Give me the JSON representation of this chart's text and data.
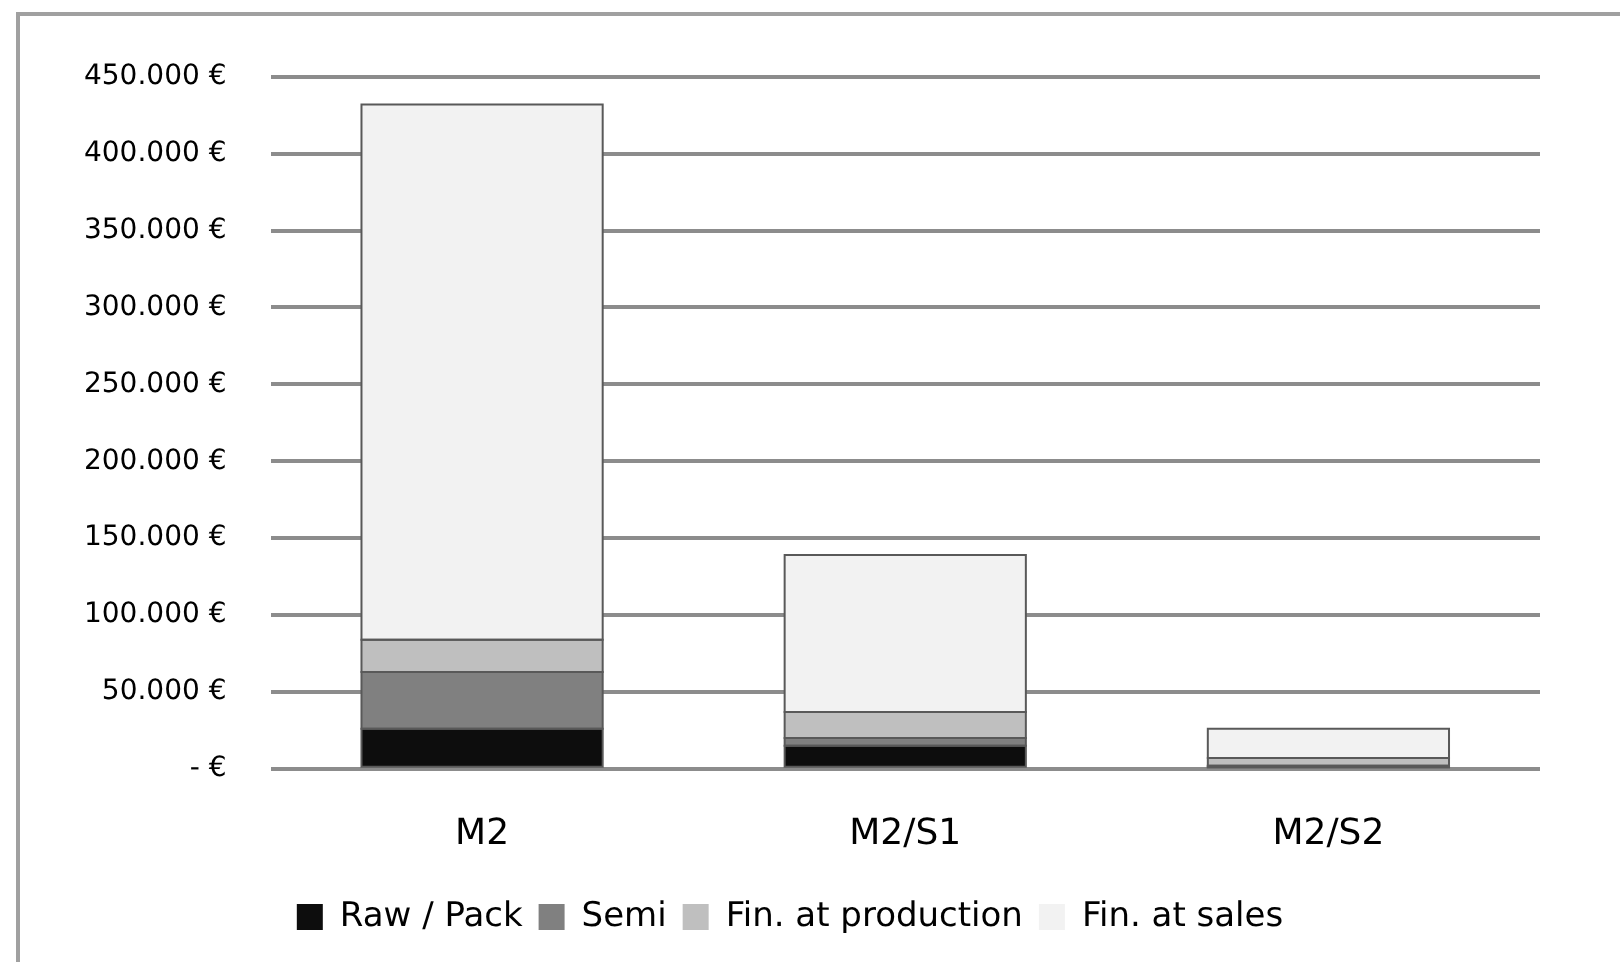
{
  "chart_data": {
    "type": "bar",
    "stacked": true,
    "categories": [
      "M2",
      "M2/S1",
      "M2/S2"
    ],
    "series": [
      {
        "name": "Raw / Pack",
        "color": "#0d0d0d",
        "values": [
          26000,
          15000,
          1000
        ]
      },
      {
        "name": "Semi",
        "color": "#808080",
        "values": [
          37000,
          5000,
          1000
        ]
      },
      {
        "name": "Fin. at production",
        "color": "#bfbfbf",
        "values": [
          21000,
          17000,
          5000
        ]
      },
      {
        "name": "Fin. at sales",
        "color": "#f2f2f2",
        "values": [
          348000,
          102000,
          19000
        ]
      }
    ],
    "ylim": [
      0,
      450000
    ],
    "yticks": [
      {
        "value": 0,
        "label": "- €"
      },
      {
        "value": 50000,
        "label": "50.000 €"
      },
      {
        "value": 100000,
        "label": "100.000 €"
      },
      {
        "value": 150000,
        "label": "150.000 €"
      },
      {
        "value": 200000,
        "label": "200.000 €"
      },
      {
        "value": 250000,
        "label": "250.000 €"
      },
      {
        "value": 300000,
        "label": "300.000 €"
      },
      {
        "value": 350000,
        "label": "350.000 €"
      },
      {
        "value": 400000,
        "label": "400.000 €"
      },
      {
        "value": 450000,
        "label": "450.000 €"
      }
    ],
    "grid": "y",
    "legend": "bottom"
  }
}
